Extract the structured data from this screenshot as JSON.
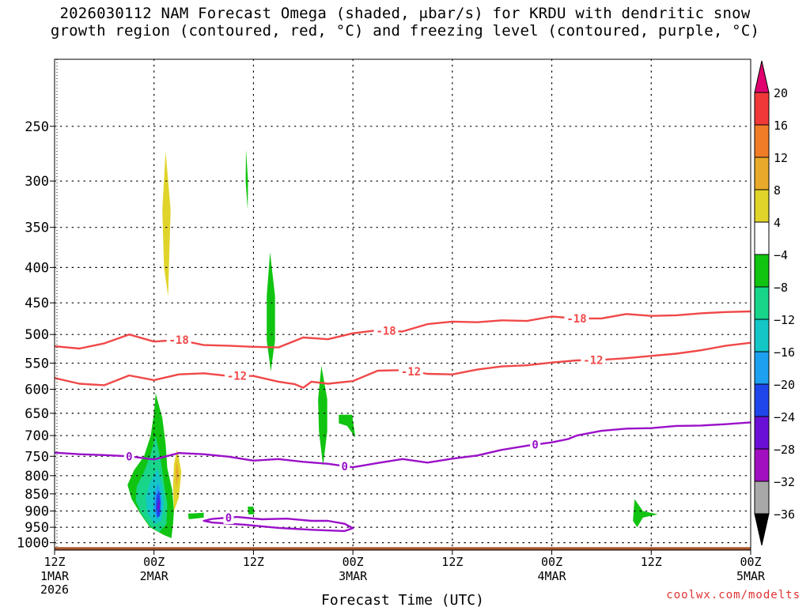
{
  "chart_data": {
    "type": "heatmap",
    "title_line1": "2026030112 NAM Forecast Omega (shaded, μbar/s) for KRDU with dendritic snow",
    "title_line2": "growth region (contoured, red, °C) and freezing level (contoured, purple, °C)",
    "xlabel": "Forecast Time (UTC)",
    "ylabel": "",
    "x_unit": "forecast hours",
    "xlim": [
      0,
      84
    ],
    "ylim_hpa": [
      200,
      1025
    ],
    "y_ticks": [
      250,
      300,
      350,
      400,
      450,
      500,
      550,
      600,
      650,
      700,
      750,
      800,
      850,
      900,
      950,
      1000
    ],
    "x_ticks": [
      {
        "hour": 0,
        "label1": "12Z",
        "label2": "1MAR",
        "label3": "2026"
      },
      {
        "hour": 12,
        "label1": "00Z",
        "label2": "2MAR",
        "label3": ""
      },
      {
        "hour": 24,
        "label1": "12Z",
        "label2": "",
        "label3": ""
      },
      {
        "hour": 36,
        "label1": "00Z",
        "label2": "3MAR",
        "label3": ""
      },
      {
        "hour": 48,
        "label1": "12Z",
        "label2": "",
        "label3": ""
      },
      {
        "hour": 60,
        "label1": "00Z",
        "label2": "4MAR",
        "label3": ""
      },
      {
        "hour": 72,
        "label1": "12Z",
        "label2": "",
        "label3": ""
      },
      {
        "hour": 84,
        "label1": "00Z",
        "label2": "5MAR",
        "label3": ""
      }
    ],
    "colorbar": {
      "levels": [
        "20",
        "16",
        "12",
        "8",
        "4",
        "−4",
        "−8",
        "−12",
        "−16",
        "−20",
        "−24",
        "−28",
        "−32",
        "−36"
      ],
      "colors": [
        "#e0006f",
        "#f03838",
        "#f07c28",
        "#e8aa2a",
        "#e0d42a",
        "#ffffff",
        "#11c411",
        "#18d58a",
        "#14c6c6",
        "#1ea0f0",
        "#1e46ea",
        "#6a10d6",
        "#a010c0",
        "#a8a8a8",
        "#000000"
      ]
    },
    "contours": {
      "dgz_upper": {
        "label": "-18",
        "color": "#f04848",
        "points": [
          [
            0,
            520
          ],
          [
            3,
            524
          ],
          [
            6,
            515
          ],
          [
            9,
            500
          ],
          [
            12,
            512
          ],
          [
            15,
            509
          ],
          [
            18,
            518
          ],
          [
            21,
            519
          ],
          [
            24,
            521
          ],
          [
            27,
            522
          ],
          [
            30,
            505
          ],
          [
            33,
            508
          ],
          [
            36,
            498
          ],
          [
            39,
            493
          ],
          [
            42,
            495
          ],
          [
            45,
            483
          ],
          [
            48,
            479
          ],
          [
            51,
            480
          ],
          [
            54,
            477
          ],
          [
            57,
            478
          ],
          [
            60,
            471
          ],
          [
            63,
            474
          ],
          [
            66,
            474
          ],
          [
            69,
            467
          ],
          [
            72,
            470
          ],
          [
            75,
            469
          ],
          [
            78,
            466
          ],
          [
            81,
            464
          ],
          [
            84,
            463
          ]
        ],
        "labels_at": [
          15,
          40,
          63
        ]
      },
      "dgz_lower": {
        "label": "-12",
        "color": "#f04848",
        "points": [
          [
            0,
            578
          ],
          [
            3,
            589
          ],
          [
            6,
            592
          ],
          [
            9,
            573
          ],
          [
            12,
            582
          ],
          [
            15,
            571
          ],
          [
            18,
            569
          ],
          [
            21,
            574
          ],
          [
            24,
            574
          ],
          [
            27,
            585
          ],
          [
            29,
            590
          ],
          [
            30,
            597
          ],
          [
            31,
            585
          ],
          [
            33,
            589
          ],
          [
            36,
            584
          ],
          [
            39,
            564
          ],
          [
            42,
            563
          ],
          [
            45,
            570
          ],
          [
            48,
            571
          ],
          [
            51,
            562
          ],
          [
            54,
            556
          ],
          [
            57,
            554
          ],
          [
            60,
            549
          ],
          [
            63,
            545
          ],
          [
            66,
            544
          ],
          [
            69,
            541
          ],
          [
            72,
            537
          ],
          [
            75,
            533
          ],
          [
            78,
            527
          ],
          [
            81,
            519
          ],
          [
            84,
            514
          ]
        ],
        "labels_at": [
          22,
          43,
          65
        ]
      },
      "freezing_level": {
        "label": "0",
        "color": "#9a10c8",
        "points": [
          [
            0,
            741
          ],
          [
            3,
            745
          ],
          [
            6,
            747
          ],
          [
            9,
            750
          ],
          [
            12,
            758
          ],
          [
            15,
            742
          ],
          [
            18,
            745
          ],
          [
            21,
            751
          ],
          [
            24,
            761
          ],
          [
            27,
            757
          ],
          [
            30,
            764
          ],
          [
            33,
            769
          ],
          [
            36,
            778
          ],
          [
            39,
            767
          ],
          [
            42,
            757
          ],
          [
            45,
            766
          ],
          [
            48,
            756
          ],
          [
            51,
            748
          ],
          [
            54,
            734
          ],
          [
            57,
            724
          ],
          [
            60,
            716
          ],
          [
            62,
            708
          ],
          [
            63,
            700
          ],
          [
            66,
            689
          ],
          [
            69,
            684
          ],
          [
            72,
            683
          ],
          [
            75,
            678
          ],
          [
            78,
            677
          ],
          [
            81,
            674
          ],
          [
            84,
            670
          ]
        ],
        "labels_at": [
          9,
          35,
          58
        ]
      },
      "lower_freezing_loop": {
        "label": "0",
        "color": "#9a10c8",
        "points": [
          [
            19,
            924
          ],
          [
            22,
            918
          ],
          [
            25,
            925
          ],
          [
            28,
            923
          ],
          [
            31,
            930
          ],
          [
            33,
            930
          ],
          [
            35,
            939
          ],
          [
            36,
            953
          ],
          [
            35,
            962
          ],
          [
            31,
            958
          ],
          [
            27,
            952
          ],
          [
            23,
            942
          ],
          [
            19,
            935
          ],
          [
            18,
            930
          ],
          [
            19,
            924
          ]
        ],
        "labels_at": [
          21
        ]
      }
    },
    "omega_regions": [
      {
        "name": "main-ascent-area",
        "color": "#11c411",
        "points": [
          [
            12.2,
            608
          ],
          [
            13,
            660
          ],
          [
            13.4,
            720
          ],
          [
            13.6,
            780
          ],
          [
            14.2,
            840
          ],
          [
            14.4,
            900
          ],
          [
            14.3,
            940
          ],
          [
            14.1,
            985
          ],
          [
            13.2,
            975
          ],
          [
            11.5,
            950
          ],
          [
            10.4,
            910
          ],
          [
            9.3,
            865
          ],
          [
            8.8,
            825
          ],
          [
            9.6,
            785
          ],
          [
            10.8,
            750
          ],
          [
            11.6,
            700
          ],
          [
            12,
            650
          ]
        ]
      },
      {
        "name": "ascent-core-1",
        "color": "#18d58a",
        "points": [
          [
            12.2,
            700
          ],
          [
            12.8,
            760
          ],
          [
            13.2,
            820
          ],
          [
            13.6,
            880
          ],
          [
            13.5,
            940
          ],
          [
            12.6,
            965
          ],
          [
            11.5,
            945
          ],
          [
            10.5,
            910
          ],
          [
            9.8,
            870
          ],
          [
            9.9,
            830
          ],
          [
            10.8,
            790
          ],
          [
            11.6,
            745
          ]
        ]
      },
      {
        "name": "ascent-core-2",
        "color": "#14c6c6",
        "points": [
          [
            12.4,
            780
          ],
          [
            13,
            830
          ],
          [
            13.2,
            880
          ],
          [
            12.9,
            930
          ],
          [
            12,
            940
          ],
          [
            11.2,
            905
          ],
          [
            11,
            860
          ],
          [
            11.5,
            820
          ]
        ]
      },
      {
        "name": "ascent-core-3",
        "color": "#1ea0f0",
        "points": [
          [
            12.5,
            820
          ],
          [
            12.9,
            860
          ],
          [
            12.9,
            905
          ],
          [
            12.4,
            925
          ],
          [
            11.9,
            900
          ],
          [
            12,
            850
          ]
        ]
      },
      {
        "name": "ascent-core-4",
        "color": "#1e46ea",
        "points": [
          [
            12.6,
            840
          ],
          [
            12.8,
            875
          ],
          [
            12.7,
            915
          ],
          [
            12.4,
            920
          ],
          [
            12.2,
            890
          ],
          [
            12.3,
            855
          ]
        ]
      },
      {
        "name": "ascent-core-5",
        "color": "#6a10d6",
        "points": [
          [
            12.6,
            860
          ],
          [
            12.7,
            890
          ],
          [
            12.5,
            905
          ],
          [
            12.4,
            885
          ]
        ]
      },
      {
        "name": "upper-ascent-streak",
        "color": "#11c411",
        "points": [
          [
            23.1,
            270
          ],
          [
            23.35,
            300
          ],
          [
            23.3,
            330
          ],
          [
            23.05,
            300
          ]
        ]
      },
      {
        "name": "midlevel-ascent-streak-1",
        "color": "#11c411",
        "points": [
          [
            26,
            380
          ],
          [
            26.6,
            440
          ],
          [
            26.6,
            510
          ],
          [
            26.1,
            565
          ],
          [
            25.6,
            510
          ],
          [
            25.6,
            440
          ]
        ]
      },
      {
        "name": "midlevel-ascent-streak-2",
        "color": "#11c411",
        "points": [
          [
            32.2,
            555
          ],
          [
            32.9,
            620
          ],
          [
            32.9,
            690
          ],
          [
            32.4,
            775
          ],
          [
            31.9,
            690
          ],
          [
            31.8,
            620
          ]
        ]
      },
      {
        "name": "midlevel-ascent-patch",
        "color": "#11c411",
        "points": [
          [
            34.3,
            653
          ],
          [
            35.9,
            653
          ],
          [
            36.3,
            705
          ],
          [
            35.3,
            678
          ],
          [
            34.3,
            672
          ]
        ]
      },
      {
        "name": "low-ascent-spot-1",
        "color": "#11c411",
        "points": [
          [
            16.1,
            908
          ],
          [
            18,
            905
          ],
          [
            18,
            920
          ],
          [
            16.2,
            925
          ]
        ]
      },
      {
        "name": "low-ascent-spot-2",
        "color": "#11c411",
        "points": [
          [
            23.3,
            887
          ],
          [
            24,
            887
          ],
          [
            24.1,
            910
          ],
          [
            23.4,
            910
          ]
        ]
      },
      {
        "name": "east-ascent-area",
        "color": "#11c411",
        "points": [
          [
            70,
            865
          ],
          [
            71,
            900
          ],
          [
            72.8,
            910
          ],
          [
            71,
            920
          ],
          [
            70.3,
            950
          ],
          [
            69.8,
            930
          ],
          [
            69.9,
            890
          ]
        ]
      },
      {
        "name": "weak-sinking-1",
        "color": "#e0d42a",
        "points": [
          [
            13.4,
            272
          ],
          [
            14,
            330
          ],
          [
            13.7,
            440
          ],
          [
            13.2,
            400
          ],
          [
            13,
            330
          ]
        ]
      },
      {
        "name": "weak-sinking-2",
        "color": "#e0d42a",
        "points": [
          [
            14.8,
            733
          ],
          [
            15.3,
            790
          ],
          [
            15,
            860
          ],
          [
            14.4,
            900
          ],
          [
            14.3,
            830
          ],
          [
            14.4,
            770
          ]
        ]
      },
      {
        "name": "weak-sinking-core",
        "color": "#e8aa2a",
        "points": [
          [
            14.8,
            760
          ],
          [
            15,
            800
          ],
          [
            14.7,
            830
          ],
          [
            14.6,
            790
          ]
        ]
      }
    ],
    "terrain": {
      "color": "#a8552c",
      "surface_hpa": 1015
    }
  },
  "credit": "coolwx.com/modelts"
}
